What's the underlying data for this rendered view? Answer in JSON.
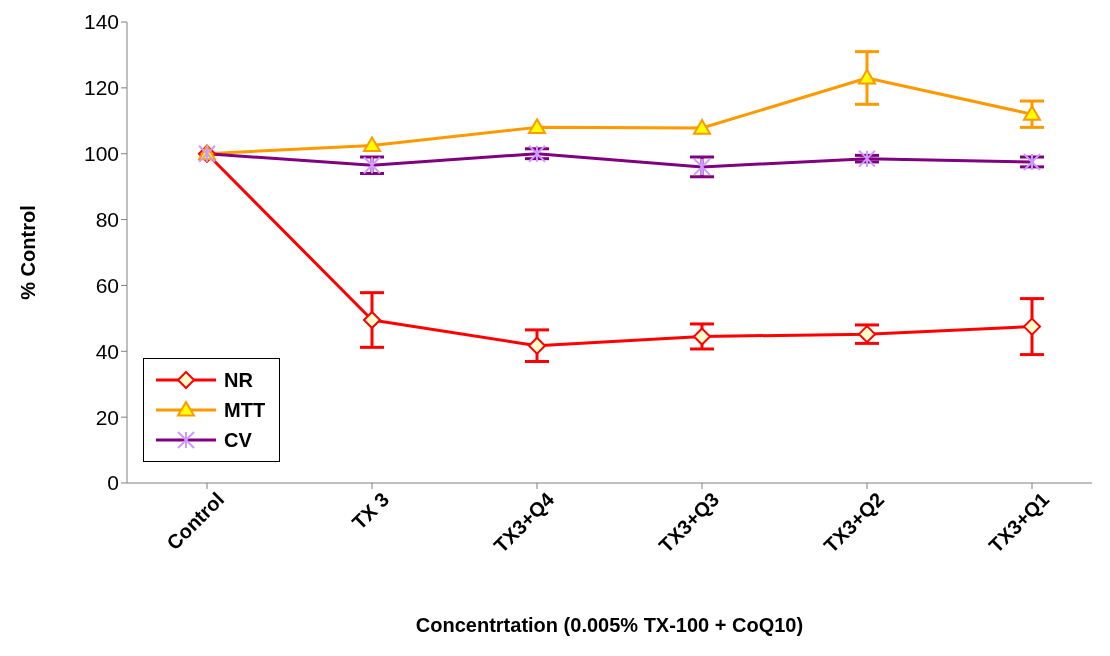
{
  "chart_data": {
    "type": "line",
    "xlabel": "Concentrtation (0.005% TX-100 + CoQ10)",
    "ylabel": "% Control",
    "categories": [
      "Control",
      "TX 3",
      "TX3+Q4",
      "TX3+Q3",
      "TX3+Q2",
      "TX3+Q1"
    ],
    "series": [
      {
        "name": "NR",
        "color": "#ff0000",
        "marker": "diamond",
        "values": [
          100,
          49.5,
          41.7,
          44.5,
          45.2,
          47.5
        ],
        "errors": [
          null,
          8.3,
          4.8,
          3.8,
          2.8,
          8.5
        ]
      },
      {
        "name": "MTT",
        "color": "#ff9900",
        "marker": "triangle",
        "values": [
          100,
          102.5,
          108,
          107.8,
          123,
          112
        ],
        "errors": [
          null,
          null,
          null,
          null,
          8,
          4
        ]
      },
      {
        "name": "CV",
        "color": "#800080",
        "marker": "cross",
        "values": [
          100,
          96.5,
          100,
          96,
          98.5,
          97.5
        ],
        "errors": [
          null,
          2.5,
          1.5,
          3,
          1,
          1.5
        ]
      }
    ],
    "ylim": [
      0,
      140
    ],
    "yticks": [
      0,
      20,
      40,
      60,
      80,
      100,
      120,
      140
    ],
    "grid": false,
    "legend": "bottom left"
  }
}
